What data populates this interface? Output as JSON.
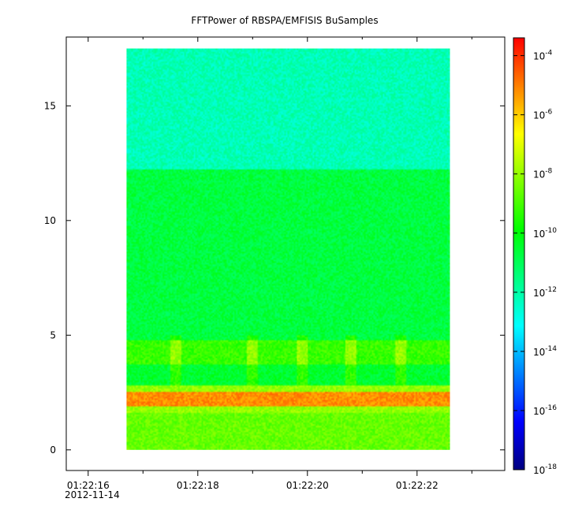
{
  "chart_data": {
    "type": "heatmap",
    "title": "FFTPower of RBSPA/EMFISIS  BuSamples",
    "xlabel": "",
    "ylabel": "",
    "x_axis": {
      "type": "time",
      "range": [
        "01:22:15.6",
        "01:22:23.6"
      ],
      "tick_labels": [
        "01:22:16",
        "01:22:18",
        "01:22:20",
        "01:22:22"
      ],
      "tick_values_s": [
        16,
        18,
        20,
        22
      ],
      "minor_tick_values_s": [
        17,
        19,
        21,
        23
      ],
      "date_label": "2012-11-14"
    },
    "y_axis": {
      "range": [
        -0.9,
        18.0
      ],
      "tick_labels": [
        "0",
        "5",
        "10",
        "15"
      ],
      "tick_values": [
        0,
        5,
        10,
        15
      ]
    },
    "data_extent": {
      "x_start": "01:22:16.7",
      "x_end": "01:22:22.6",
      "y_min": 0,
      "y_max": 17.5
    },
    "colorbar": {
      "scale": "log",
      "range": [
        1e-18,
        0.0004
      ],
      "tick_bases": [
        "10",
        "10",
        "10",
        "10",
        "10",
        "10",
        "10",
        "10"
      ],
      "tick_exponents": [
        "-4",
        "-6",
        "-8",
        "-10",
        "-12",
        "-14",
        "-16",
        "-18"
      ],
      "tick_values": [
        0.0001,
        1e-06,
        1e-08,
        1e-10,
        1e-12,
        1e-14,
        1e-16,
        1e-18
      ],
      "colormap": [
        "#000080",
        "#0000ff",
        "#0080ff",
        "#00ffff",
        "#00ff80",
        "#00ff00",
        "#80ff00",
        "#ffff00",
        "#ff8000",
        "#ff0000"
      ]
    },
    "spectrum_bands": [
      {
        "y_from": 0.0,
        "y_to": 1.6,
        "log10_power": -8.6
      },
      {
        "y_from": 1.6,
        "y_to": 1.9,
        "log10_power": -8.0
      },
      {
        "y_from": 1.9,
        "y_to": 2.5,
        "log10_power": -5.2
      },
      {
        "y_from": 2.5,
        "y_to": 2.8,
        "log10_power": -8.0
      },
      {
        "y_from": 2.8,
        "y_to": 3.7,
        "log10_power": -10.5
      },
      {
        "y_from": 3.7,
        "y_to": 4.8,
        "log10_power": -9.2
      },
      {
        "y_from": 4.8,
        "y_to": 12.2,
        "log10_power": -10.7
      },
      {
        "y_from": 12.2,
        "y_to": 17.5,
        "log10_power": -12.2
      }
    ],
    "bursts_s": [
      17.6,
      19.0,
      19.9,
      20.8,
      21.7
    ]
  }
}
